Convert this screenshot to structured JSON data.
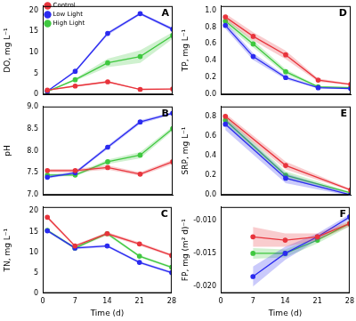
{
  "chart_data": [
    {
      "type": "line",
      "title": "A",
      "y_label": "DO, mg L⁻¹",
      "x": [
        1,
        7,
        14,
        21,
        28
      ],
      "xlim": [
        0,
        28
      ],
      "xticks": [
        0,
        7,
        14,
        21,
        28
      ],
      "ylim": [
        0,
        21
      ],
      "yticks": [
        0,
        5,
        10,
        15,
        20
      ],
      "grid": false,
      "legend": "upper left",
      "tick_labels": "y",
      "series": [
        {
          "name": "Control",
          "color": "#e8343c",
          "marker": "circle",
          "values": [
            1.0,
            2.0,
            3.0,
            1.2,
            1.3
          ],
          "error": [
            0.1,
            0.2,
            0.2,
            0.1,
            0.1
          ]
        },
        {
          "name": "Low Light",
          "color": "#2b2bf0",
          "marker": "circle",
          "values": [
            0.8,
            5.5,
            14.5,
            19.2,
            15.5
          ],
          "error": [
            0.1,
            0.3,
            0.4,
            0.3,
            0.4
          ]
        },
        {
          "name": "High Light",
          "color": "#3fc83f",
          "marker": "circle",
          "values": [
            0.7,
            3.5,
            7.5,
            9.0,
            14.0
          ],
          "error": [
            0.1,
            0.3,
            1.0,
            1.5,
            0.8
          ]
        }
      ]
    },
    {
      "type": "line",
      "title": "B",
      "y_label": "pH",
      "x": [
        1,
        7,
        14,
        21,
        28
      ],
      "xlim": [
        0,
        28
      ],
      "xticks": [
        0,
        7,
        14,
        21,
        28
      ],
      "ylim": [
        7.0,
        9.0
      ],
      "yticks": [
        {
          "value": 7.0,
          "label": "7.0"
        },
        {
          "value": 7.5,
          "label": "7.5"
        },
        {
          "value": 8.0,
          "label": "8.0"
        },
        {
          "value": 8.5,
          "label": "8.5"
        },
        {
          "value": 9.0,
          "label": "9.0"
        }
      ],
      "grid": false,
      "tick_labels": "y",
      "series": [
        {
          "name": "Control",
          "color": "#e8343c",
          "marker": "circle",
          "values": [
            7.55,
            7.55,
            7.62,
            7.47,
            7.75
          ],
          "error": [
            0.04,
            0.04,
            0.05,
            0.04,
            0.05
          ]
        },
        {
          "name": "Low Light",
          "color": "#2b2bf0",
          "marker": "circle",
          "values": [
            7.4,
            7.5,
            8.08,
            8.65,
            8.85
          ],
          "error": [
            0.03,
            0.03,
            0.04,
            0.04,
            0.03
          ]
        },
        {
          "name": "High Light",
          "color": "#3fc83f",
          "marker": "circle",
          "values": [
            7.45,
            7.45,
            7.75,
            7.9,
            8.5
          ],
          "error": [
            0.03,
            0.03,
            0.05,
            0.07,
            0.05
          ]
        }
      ]
    },
    {
      "type": "line",
      "title": "C",
      "y_label": "TN, mg L⁻¹",
      "x_label": "Time (d)",
      "x": [
        1,
        7,
        14,
        21,
        28
      ],
      "xlim": [
        0,
        28
      ],
      "xticks": [
        0,
        7,
        14,
        21,
        28
      ],
      "ylim": [
        0,
        21
      ],
      "yticks": [
        0,
        5,
        10,
        15,
        20
      ],
      "grid": false,
      "series": [
        {
          "name": "Control",
          "color": "#e8343c",
          "marker": "circle",
          "values": [
            18.5,
            11.5,
            14.5,
            12.0,
            9.2
          ],
          "error": [
            0.4,
            0.3,
            0.4,
            0.4,
            0.3
          ]
        },
        {
          "name": "Low Light",
          "color": "#2b2bf0",
          "marker": "circle",
          "values": [
            15.2,
            11.0,
            11.5,
            7.5,
            5.0
          ],
          "error": [
            0.3,
            0.3,
            0.3,
            0.3,
            0.3
          ]
        },
        {
          "name": "High Light",
          "color": "#3fc83f",
          "marker": "circle",
          "values": [
            15.3,
            11.0,
            14.5,
            9.0,
            6.3
          ],
          "error": [
            0.3,
            0.3,
            0.4,
            0.3,
            0.3
          ]
        }
      ]
    },
    {
      "type": "line",
      "title": "D",
      "y_label": "TP, mg L⁻¹",
      "x": [
        1,
        7,
        14,
        21,
        28
      ],
      "xlim": [
        0,
        28
      ],
      "xticks": [
        0,
        7,
        14,
        21,
        28
      ],
      "ylim": [
        0,
        1.05
      ],
      "yticks": [
        {
          "value": 0,
          "label": "0.0"
        },
        {
          "value": 0.2,
          "label": "0.2"
        },
        {
          "value": 0.4,
          "label": "0.4"
        },
        {
          "value": 0.6,
          "label": "0.6"
        },
        {
          "value": 0.8,
          "label": "0.8"
        },
        {
          "value": 1.0,
          "label": "1.0"
        }
      ],
      "grid": false,
      "tick_labels": "y",
      "series": [
        {
          "name": "Control",
          "color": "#e8343c",
          "marker": "circle",
          "values": [
            0.92,
            0.69,
            0.47,
            0.17,
            0.12
          ],
          "error": [
            0.04,
            0.05,
            0.05,
            0.02,
            0.01
          ]
        },
        {
          "name": "Low Light",
          "color": "#2b2bf0",
          "marker": "circle",
          "values": [
            0.82,
            0.45,
            0.2,
            0.08,
            0.07
          ],
          "error": [
            0.04,
            0.04,
            0.02,
            0.01,
            0.01
          ]
        },
        {
          "name": "High Light",
          "color": "#3fc83f",
          "marker": "circle",
          "values": [
            0.87,
            0.6,
            0.27,
            0.09,
            0.08
          ],
          "error": [
            0.04,
            0.04,
            0.03,
            0.01,
            0.01
          ]
        }
      ]
    },
    {
      "type": "line",
      "title": "E",
      "y_label": "SRP, mg L⁻¹",
      "x": [
        1,
        14,
        28
      ],
      "xlim": [
        0,
        28
      ],
      "xticks": [
        0,
        7,
        14,
        21,
        28
      ],
      "ylim": [
        0,
        0.9
      ],
      "yticks": [
        {
          "value": 0,
          "label": "0.0"
        },
        {
          "value": 0.2,
          "label": "0.2"
        },
        {
          "value": 0.4,
          "label": "0.4"
        },
        {
          "value": 0.6,
          "label": "0.6"
        },
        {
          "value": 0.8,
          "label": "0.8"
        }
      ],
      "grid": false,
      "tick_labels": "y",
      "series": [
        {
          "name": "Control",
          "color": "#e8343c",
          "marker": "circle",
          "values": [
            0.8,
            0.3,
            0.05
          ],
          "error": [
            0.03,
            0.04,
            0.01
          ]
        },
        {
          "name": "Low Light",
          "color": "#2b2bf0",
          "marker": "circle",
          "values": [
            0.72,
            0.17,
            0.0
          ],
          "error": [
            0.06,
            0.05,
            0.01
          ]
        },
        {
          "name": "High Light",
          "color": "#3fc83f",
          "marker": "circle",
          "values": [
            0.76,
            0.2,
            0.02
          ],
          "error": [
            0.04,
            0.04,
            0.01
          ]
        }
      ]
    },
    {
      "type": "line",
      "title": "F",
      "y_label": "FP, mg (m² d)⁻¹",
      "x_label": "Time (d)",
      "x": [
        7,
        14,
        21,
        28
      ],
      "xlim": [
        0,
        28
      ],
      "xticks": [
        0,
        7,
        14,
        21,
        28
      ],
      "ylim": [
        -0.021,
        -0.008
      ],
      "yticks": [
        {
          "value": -0.02,
          "label": "-0.020"
        },
        {
          "value": -0.015,
          "label": "-0.015"
        },
        {
          "value": -0.01,
          "label": "-0.010"
        }
      ],
      "grid": false,
      "series": [
        {
          "name": "Control",
          "color": "#e8343c",
          "marker": "circle",
          "values": [
            -0.0125,
            -0.013,
            -0.0125,
            -0.0105
          ],
          "error": [
            0.0015,
            0.001,
            0.0005,
            0.0004
          ]
        },
        {
          "name": "Low Light",
          "color": "#2b2bf0",
          "marker": "circle",
          "values": [
            -0.0185,
            -0.015,
            -0.0125,
            -0.0095
          ],
          "error": [
            0.0015,
            0.001,
            0.0005,
            0.0004
          ]
        },
        {
          "name": "High Light",
          "color": "#3fc83f",
          "marker": "circle",
          "values": [
            -0.015,
            -0.015,
            -0.013,
            -0.0105
          ],
          "error": [
            0.0008,
            0.0006,
            0.0005,
            0.0004
          ]
        }
      ]
    }
  ]
}
